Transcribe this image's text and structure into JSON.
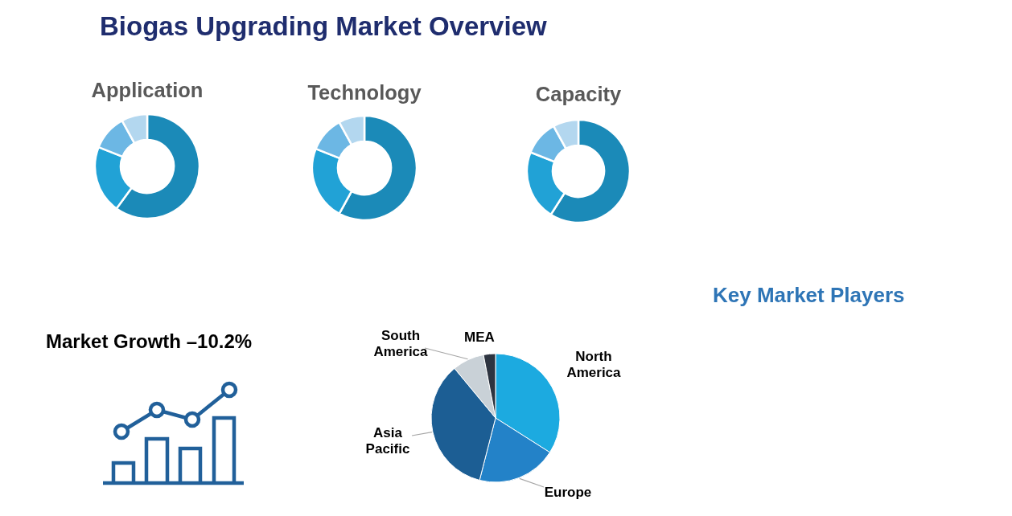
{
  "chart_data": [
    {
      "type": "other",
      "title": "Biogas Upgrading Market Overview"
    },
    {
      "type": "donut",
      "title": "Application",
      "categories": [
        null,
        null,
        null,
        null
      ],
      "values": [
        60,
        21,
        11,
        8
      ],
      "colors": [
        "#1b8ab8",
        "#21a2d6",
        "#6cb7e4",
        "#b3d7ef"
      ]
    },
    {
      "type": "donut",
      "title": "Technology",
      "categories": [
        null,
        null,
        null,
        null
      ],
      "values": [
        58,
        23,
        11,
        8
      ],
      "colors": [
        "#1b8ab8",
        "#21a2d6",
        "#6cb7e4",
        "#b3d7ef"
      ]
    },
    {
      "type": "donut",
      "title": "Capacity",
      "categories": [
        null,
        null,
        null,
        null
      ],
      "values": [
        59,
        22,
        11,
        8
      ],
      "colors": [
        "#1b8ab8",
        "#21a2d6",
        "#6cb7e4",
        "#b3d7ef"
      ]
    },
    {
      "type": "other",
      "title": "Market Growth –10.2%"
    },
    {
      "type": "pie",
      "categories": [
        "North America",
        "Europe",
        "Asia Pacific",
        "South America",
        "MEA"
      ],
      "values": [
        34,
        20,
        35,
        8,
        3
      ],
      "colors": [
        "#1caae0",
        "#2382c8",
        "#1c5e94",
        "#c9d1d7",
        "#2d3440"
      ]
    },
    {
      "type": "other",
      "title": "Key Market Players"
    }
  ]
}
